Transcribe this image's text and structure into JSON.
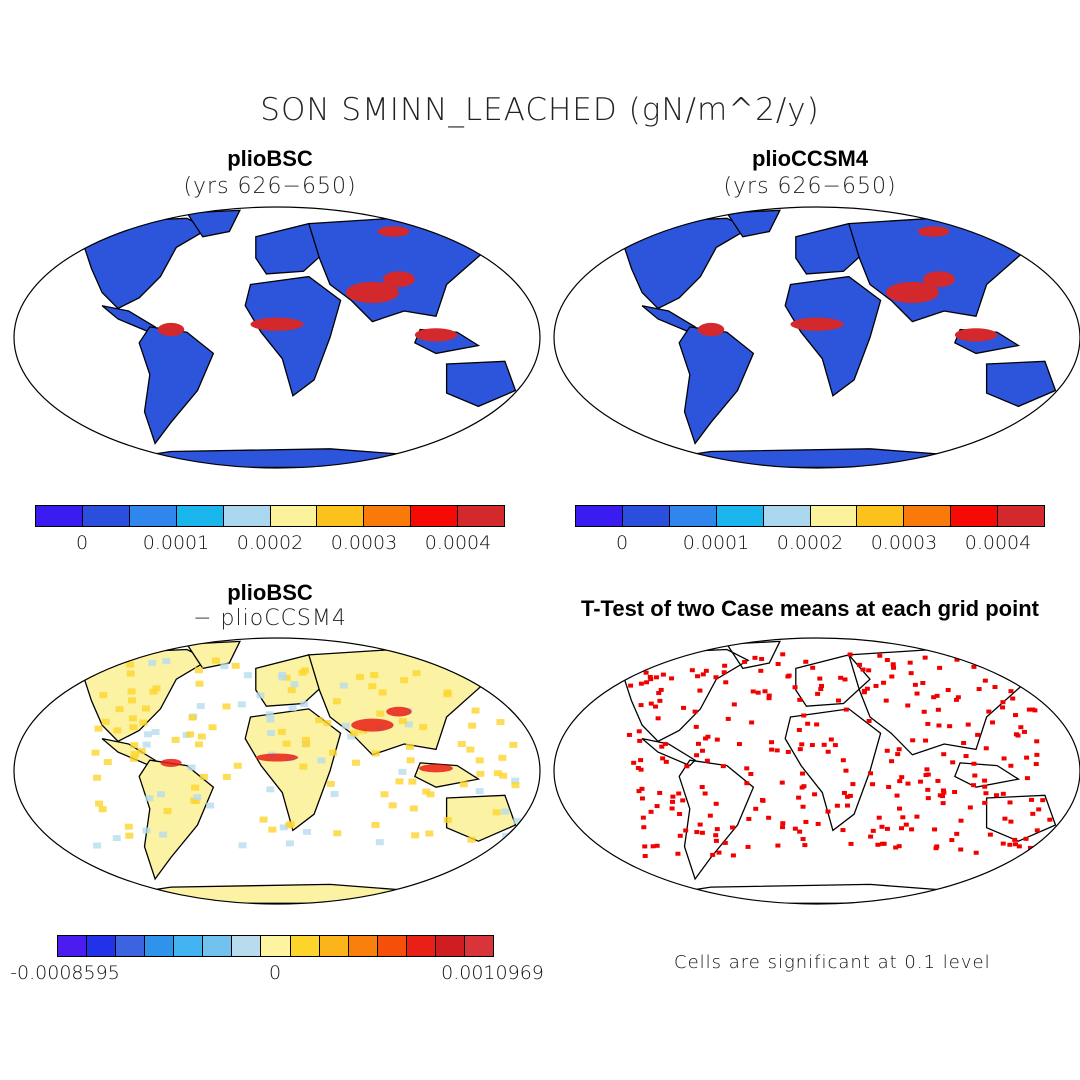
{
  "title": "SON SMINN_LEACHED (gN/m^2/y)",
  "panels": [
    {
      "title": "plioBSC",
      "subtitle": "(yrs 626−650)",
      "style": "field"
    },
    {
      "title": "plioCCSM4",
      "subtitle": "(yrs 626−650)",
      "style": "field"
    },
    {
      "title": "plioBSC",
      "subtitle": "− plioCCSM4",
      "style": "diff"
    },
    {
      "title": "T-Test of two Case means at each grid point",
      "subtitle": "",
      "style": "ttest"
    }
  ],
  "colorbar_top": {
    "colors": [
      "#3a1cf0",
      "#2a4fdc",
      "#2f86ec",
      "#19b5ec",
      "#a9d8ee",
      "#fbf29c",
      "#fbc21e",
      "#f9790b",
      "#f60a06",
      "#d3282c"
    ],
    "tick_labels": [
      "0",
      "0.0001",
      "0.0002",
      "0.0003",
      "0.0004"
    ]
  },
  "colorbar_diff": {
    "colors": [
      "#4a1cf0",
      "#2232e8",
      "#3c63e0",
      "#2f93ec",
      "#44b3f2",
      "#72c2f0",
      "#b8dcee",
      "#fdf3a0",
      "#fdd42a",
      "#fbb41a",
      "#f9800c",
      "#f5500a",
      "#e82016",
      "#cf1e22",
      "#d8343a"
    ],
    "min_label": "-0.0008595",
    "mid_label": "0",
    "max_label": "0.0010969"
  },
  "note": "Cells are significant at 0.1 level"
}
